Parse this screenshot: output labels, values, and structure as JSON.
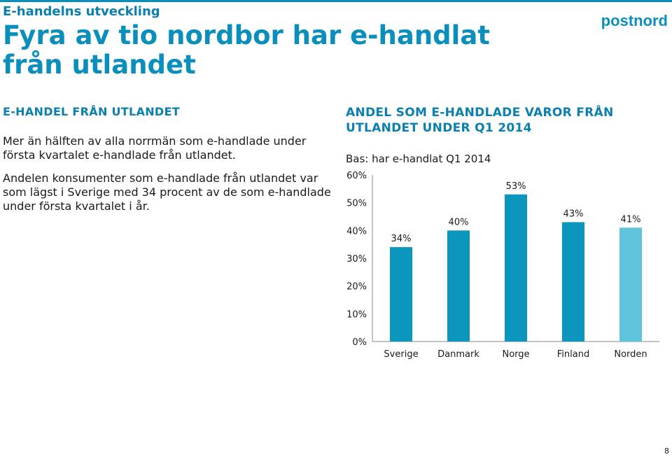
{
  "header": {
    "section_label": "E-handelns utveckling",
    "title": "Fyra av tio nordbor har e-handlat från utlandet",
    "logo_text": "postnord"
  },
  "left": {
    "heading": "E-HANDEL FRÅN UTLANDET",
    "paragraph1": "Mer än hälften av alla norrmän som e-handlade under första kvartalet e-handlade från utlandet.",
    "paragraph2": "Andelen konsumenter som e-handlade från utlandet var som lägst i Sverige med 34 procent av de som e-handlade under första kvartalet i år."
  },
  "right": {
    "heading": "ANDEL SOM E-HANDLADE VAROR FRÅN UTLANDET UNDER Q1 2014",
    "base_note": "Bas: har e-handlat Q1 2014"
  },
  "colors": {
    "accent": "#0a8fbd",
    "bar": "#0a96bd",
    "bar_highlight": "#5ec4dc"
  },
  "chart_data": {
    "type": "bar",
    "categories": [
      "Sverige",
      "Danmark",
      "Norge",
      "Finland",
      "Norden"
    ],
    "values": [
      34,
      40,
      53,
      43,
      41
    ],
    "data_labels": [
      "34%",
      "40%",
      "53%",
      "43%",
      "41%"
    ],
    "ylim": [
      0,
      60
    ],
    "yticks": [
      "0%",
      "10%",
      "20%",
      "30%",
      "40%",
      "50%",
      "60%"
    ],
    "grid": false,
    "highlighted_category": "Norden"
  },
  "footer": {
    "page_number": "8"
  }
}
